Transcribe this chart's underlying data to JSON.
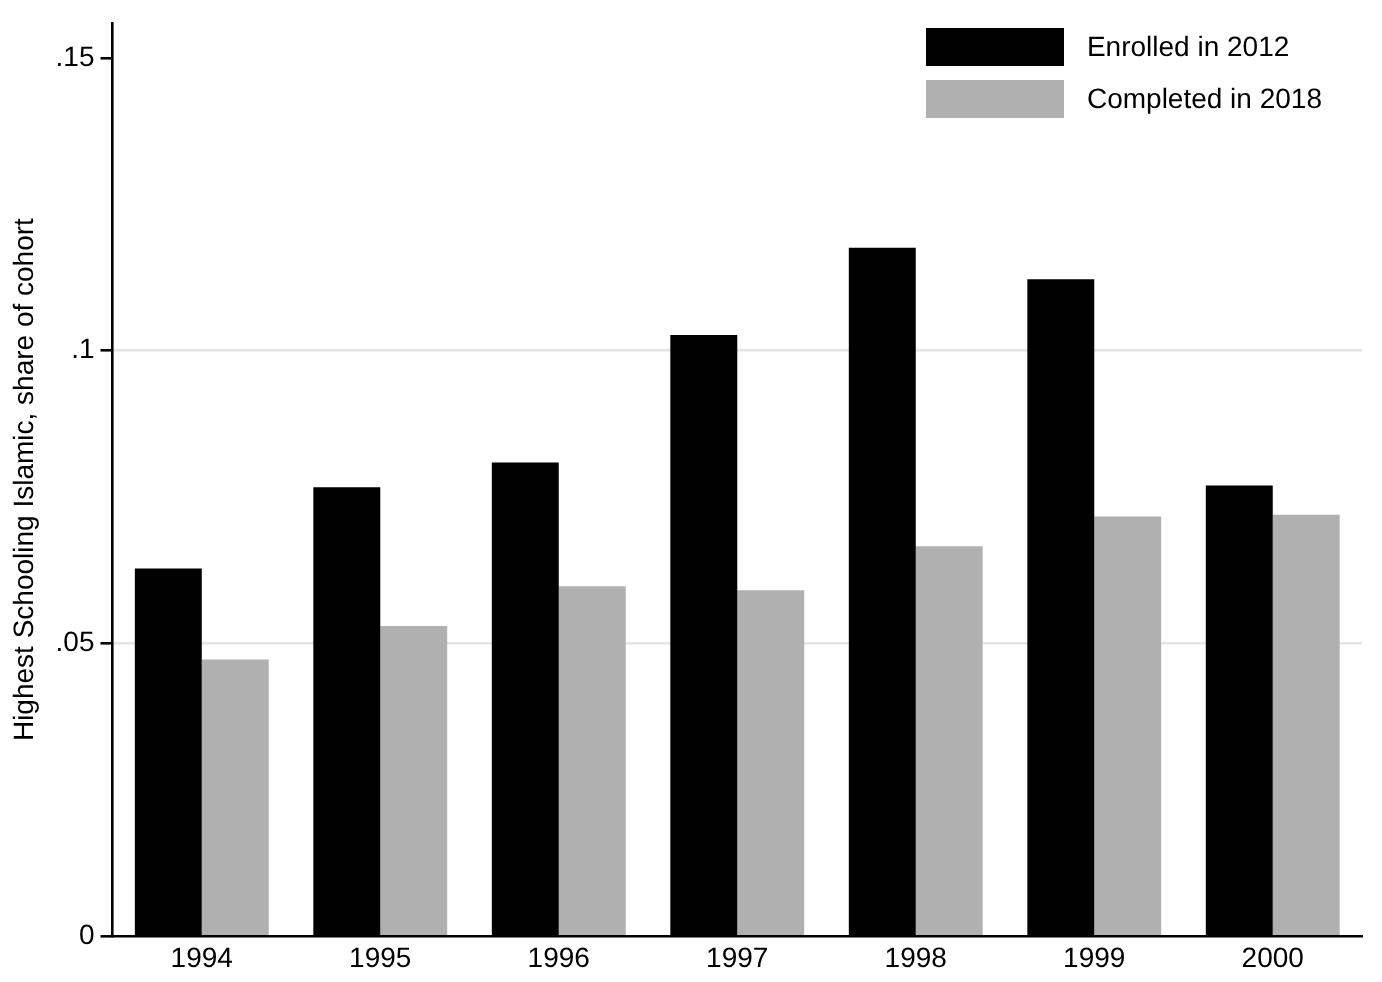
{
  "chart_data": {
    "type": "bar",
    "ylabel": "Highest Schooling Islamic, share of cohort",
    "categories": [
      "1994",
      "1995",
      "1996",
      "1997",
      "1998",
      "1999",
      "2000"
    ],
    "series": [
      {
        "name": "Enrolled in 2012",
        "color": "#000000",
        "values": [
          0.0628,
          0.0767,
          0.0809,
          0.1027,
          0.1176,
          0.1122,
          0.077
        ]
      },
      {
        "name": "Completed in 2018",
        "color": "#b0b0b0",
        "values": [
          0.0473,
          0.053,
          0.0598,
          0.0591,
          0.0666,
          0.0717,
          0.072
        ]
      }
    ],
    "ylim": [
      0,
      0.156
    ],
    "yticks": [
      {
        "value": 0,
        "label": "0"
      },
      {
        "value": 0.05,
        "label": ".05"
      },
      {
        "value": 0.1,
        "label": ".1"
      },
      {
        "value": 0.15,
        "label": ".15"
      }
    ],
    "grid": "y",
    "legend": "top right"
  }
}
